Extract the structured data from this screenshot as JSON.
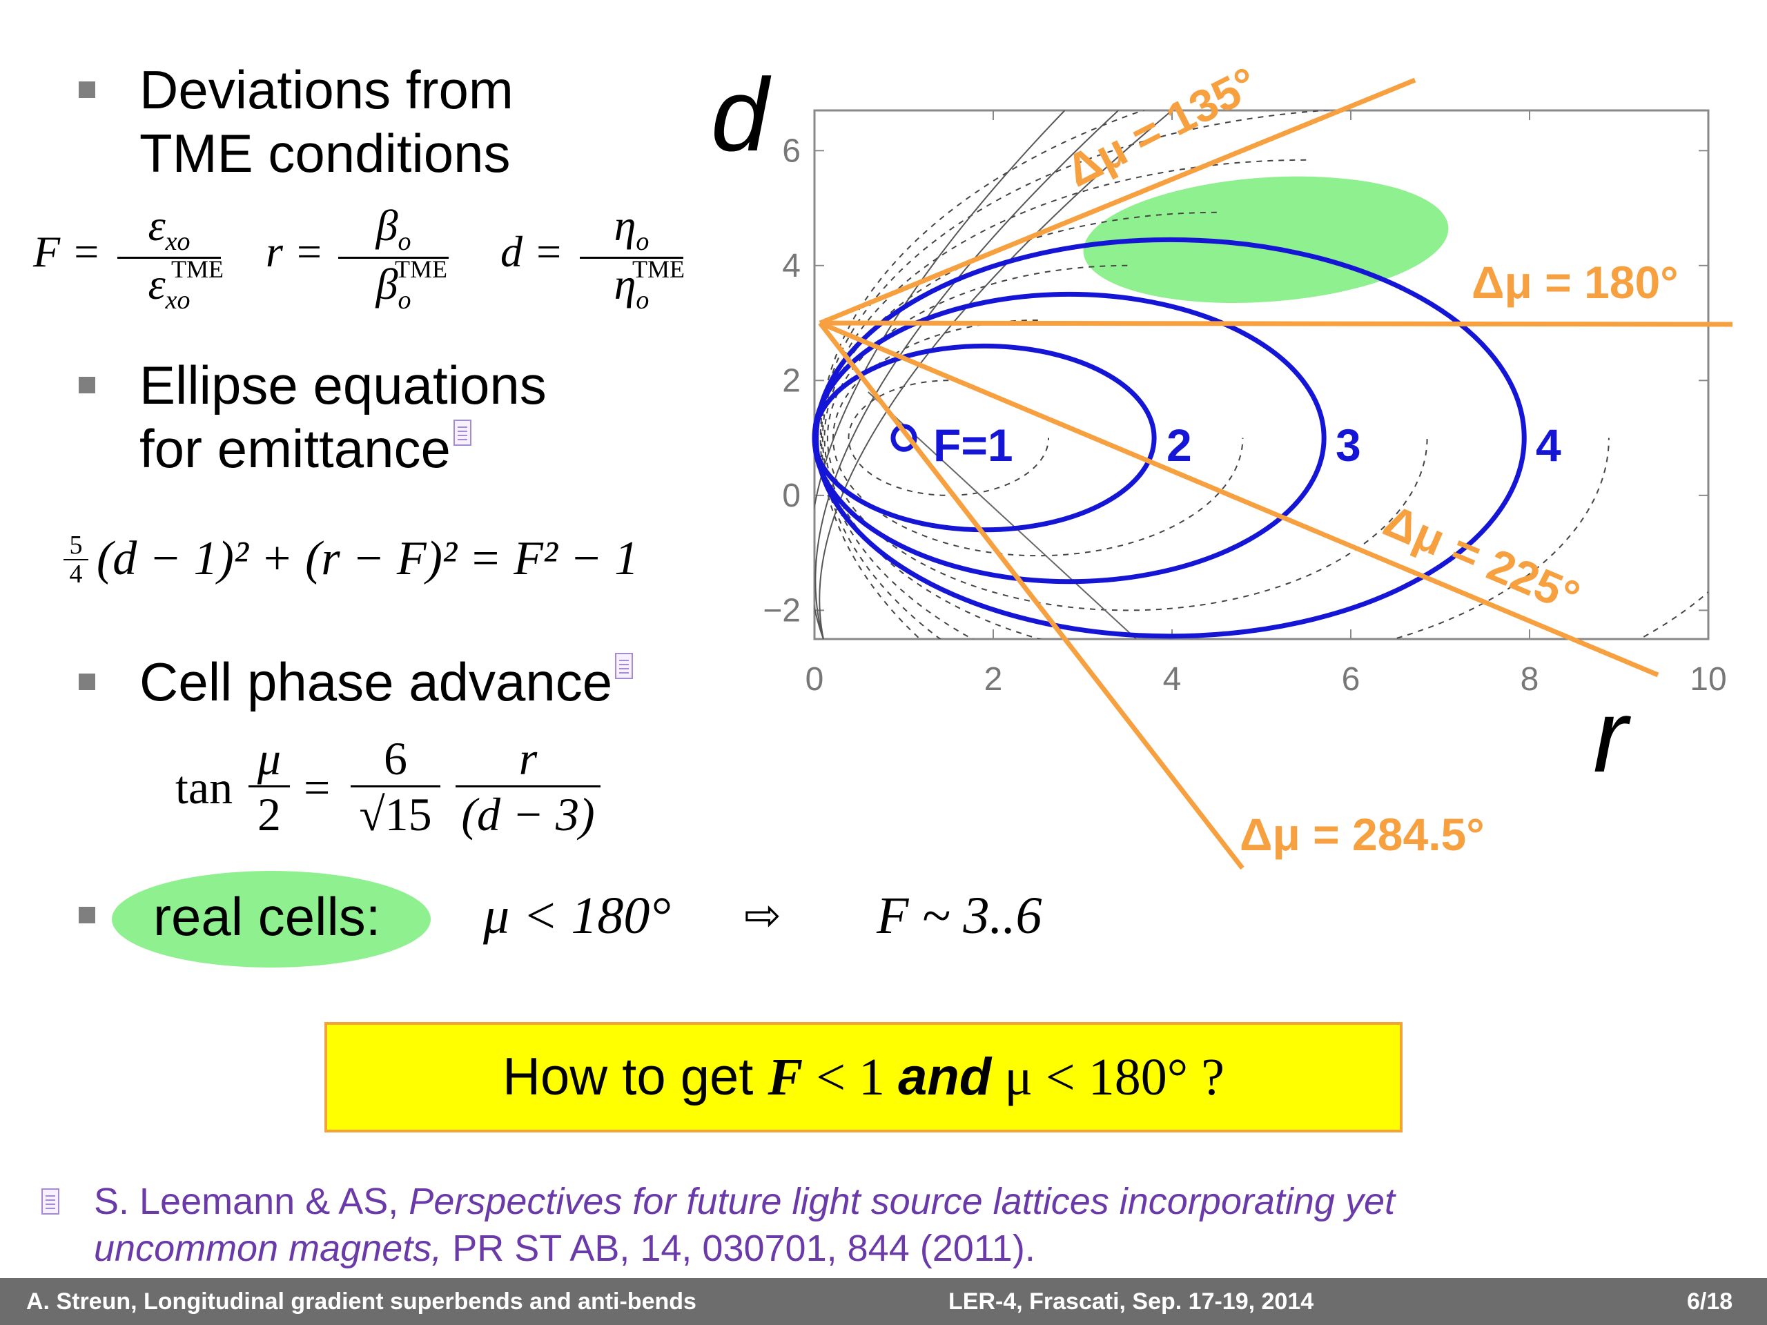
{
  "bullets": {
    "b1_line1": "Deviations from",
    "b1_line2": "TME conditions",
    "b2_line1": "Ellipse equations",
    "b2_line2": "for emittance",
    "b3": "Cell phase advance",
    "b4": "real cells:"
  },
  "formulas": {
    "F_lhs": "F =",
    "F_num": "ε",
    "F_num_sub": "xo",
    "F_den": "ε",
    "F_den_sub": "xo",
    "F_den_sup": "TME",
    "r_lhs": "r =",
    "r_num": "β",
    "r_num_sub": "o",
    "r_den": "β",
    "r_den_sub": "o",
    "r_den_sup": "TME",
    "d_lhs": "d =",
    "d_num": "η",
    "d_num_sub": "o",
    "d_den": "η",
    "d_den_sub": "o",
    "d_den_sup": "TME",
    "ellipse_coef_num": "5",
    "ellipse_coef_den": "4",
    "ellipse_rest": "(d − 1)² + (r − F)² = F² − 1",
    "tan_lhs": "tan",
    "tan_num": "μ",
    "tan_den": "2",
    "tan_eq": "=",
    "six": "6",
    "sqrt15": "√15",
    "r_over": "r",
    "d_minus3": "(d − 3)",
    "mu_cond": "μ < 180°",
    "arrow": "⇨",
    "F_range": "F ~ 3..6"
  },
  "question": {
    "p1": "How to get ",
    "p2": "F",
    "p3": " < 1 ",
    "p4": "and",
    "p5": " μ  < 180° ?"
  },
  "reference": {
    "authors": "S. Leemann & AS,",
    "title1": "Perspectives for future light source lattices incorporating yet",
    "title2": "uncommon magnets,",
    "journal": " PR ST AB, 14, 030701, 844 (2011)."
  },
  "footer": {
    "left": "A. Streun, Longitudinal gradient superbends and anti-bends",
    "center": "LER-4, Frascati,  Sep. 17-19, 2014",
    "right": "6/18"
  },
  "chart_data": {
    "type": "line",
    "xlabel": "r",
    "ylabel": "d",
    "xlim": [
      0,
      10
    ],
    "ylim": [
      -2.5,
      6.7
    ],
    "xticks": [
      "0",
      "2",
      "4",
      "6",
      "8",
      "10"
    ],
    "yticks": [
      "−2",
      "0",
      "2",
      "4",
      "6"
    ],
    "ellipses": [
      {
        "label": "F=1",
        "F": 1
      },
      {
        "label": "2",
        "F": 2
      },
      {
        "label": "3",
        "F": 3
      },
      {
        "label": "4",
        "F": 4
      }
    ],
    "phase_lines": [
      {
        "label": "Δμ = 135°",
        "mu": 135
      },
      {
        "label": "Δμ = 180°",
        "mu": 180
      },
      {
        "label": "Δμ = 225°",
        "mu": 225
      },
      {
        "label": "Δμ = 284.5°",
        "mu": 284.5
      }
    ],
    "origin_point": {
      "r": 0,
      "d": 3
    },
    "colors": {
      "ellipse": "#1515d6",
      "phase": "#f7a040",
      "highlight": "#8ef08e",
      "yellow_box": "#ffff00",
      "box_border": "#f3a33a",
      "reference": "#6a3aa8"
    }
  }
}
